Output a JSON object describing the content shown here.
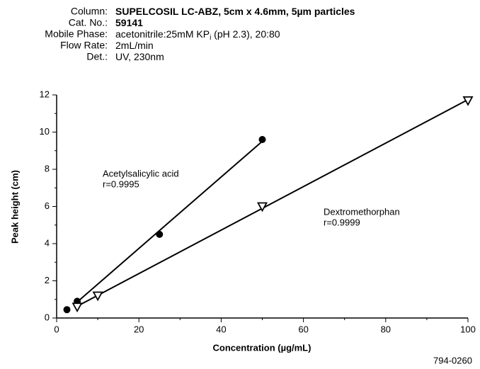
{
  "chart_data": {
    "type": "scatter",
    "header": [
      {
        "label": "Column:",
        "value": "SUPELCOSIL LC-ABZ, 5cm x 4.6mm, 5µm particles",
        "bold": true
      },
      {
        "label": "Cat. No.:",
        "value": "59141",
        "bold": true
      },
      {
        "label": "Mobile Phase:",
        "value": "acetonitrile:25mM KP",
        "sub": "i",
        "rest": " (pH 2.3), 20:80",
        "bold": false
      },
      {
        "label": "Flow Rate:",
        "value": "2mL/min",
        "bold": false
      },
      {
        "label": "Det.:",
        "value": "UV, 230nm",
        "bold": false
      }
    ],
    "x_label": "Concentration (µg/mL)",
    "y_label": "Peak height (cm)",
    "xlim": [
      0,
      100
    ],
    "xticks": [
      0,
      20,
      40,
      60,
      80,
      100
    ],
    "ylim": [
      0,
      12
    ],
    "yticks": [
      0,
      2,
      4,
      6,
      8,
      10,
      12
    ],
    "series": [
      {
        "name": "Acetylsalicylic acid",
        "r": "r=0.9995",
        "marker": "circle",
        "color": "#000000",
        "x": [
          2.5,
          5,
          25,
          50
        ],
        "values": [
          0.45,
          0.9,
          4.5,
          9.6
        ]
      },
      {
        "name": "Dextromethorphan",
        "r": "r=0.9999",
        "marker": "triangle",
        "color": "#000000",
        "x": [
          5,
          10,
          50,
          100
        ],
        "values": [
          0.6,
          1.2,
          6.0,
          11.7
        ]
      }
    ],
    "footnote": "794-0260"
  }
}
